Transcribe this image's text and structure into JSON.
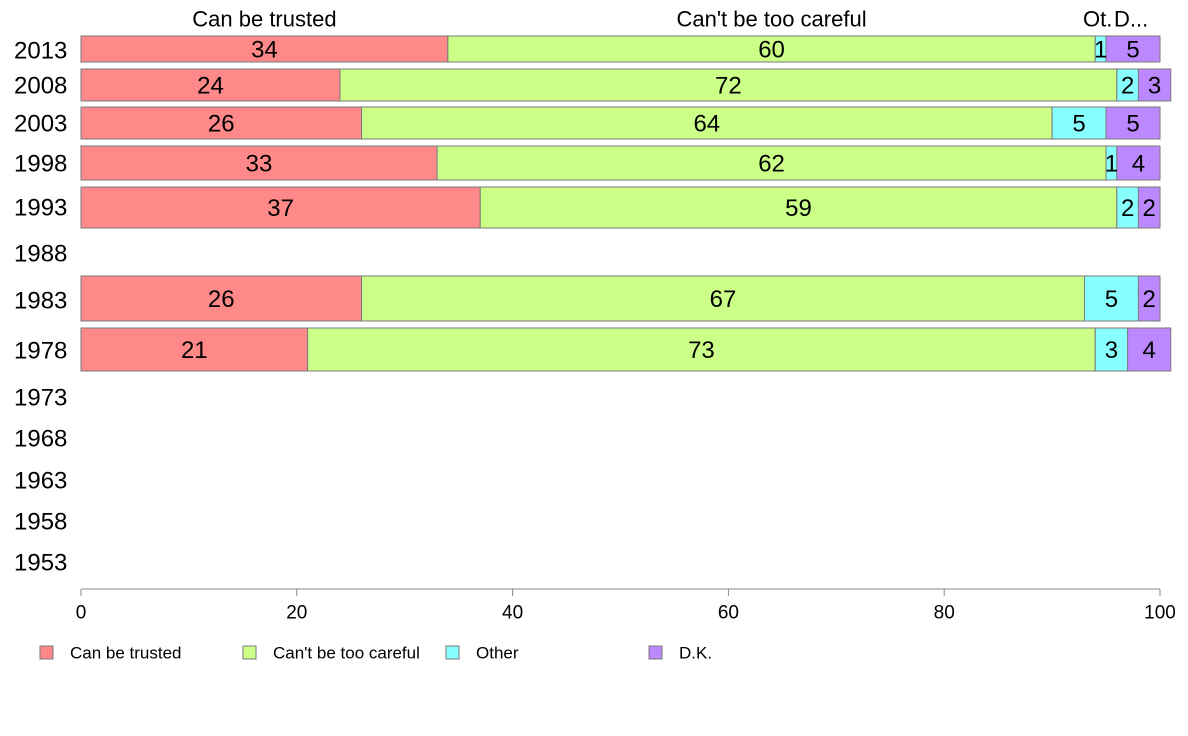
{
  "chart_data": {
    "type": "bar",
    "orientation": "horizontal",
    "stacked": true,
    "categories": [
      "2013",
      "2008",
      "2003",
      "1998",
      "1993",
      "1988",
      "1983",
      "1978",
      "1973",
      "1968",
      "1963",
      "1958",
      "1953"
    ],
    "series": [
      {
        "name": "Can be trusted",
        "color": "#ff8888",
        "values": [
          34,
          24,
          26,
          33,
          37,
          null,
          26,
          21,
          null,
          null,
          null,
          null,
          null
        ]
      },
      {
        "name": "Can't be too careful",
        "color": "#ccff88",
        "values": [
          60,
          72,
          64,
          62,
          59,
          null,
          67,
          73,
          null,
          null,
          null,
          null,
          null
        ]
      },
      {
        "name": "Other",
        "color": "#88ffff",
        "values": [
          1,
          2,
          5,
          1,
          2,
          null,
          5,
          3,
          null,
          null,
          null,
          null,
          null
        ]
      },
      {
        "name": "D.K.",
        "color": "#bb88ff",
        "values": [
          5,
          3,
          5,
          4,
          2,
          null,
          2,
          4,
          null,
          null,
          null,
          null,
          null
        ]
      }
    ],
    "top_labels": [
      "Can be trusted",
      "Can't be too careful",
      "Ot.",
      "D..."
    ],
    "xlim": [
      0,
      100
    ],
    "xticks": [
      0,
      20,
      40,
      60,
      80,
      100
    ],
    "grid": false,
    "legend_position": "bottom"
  }
}
